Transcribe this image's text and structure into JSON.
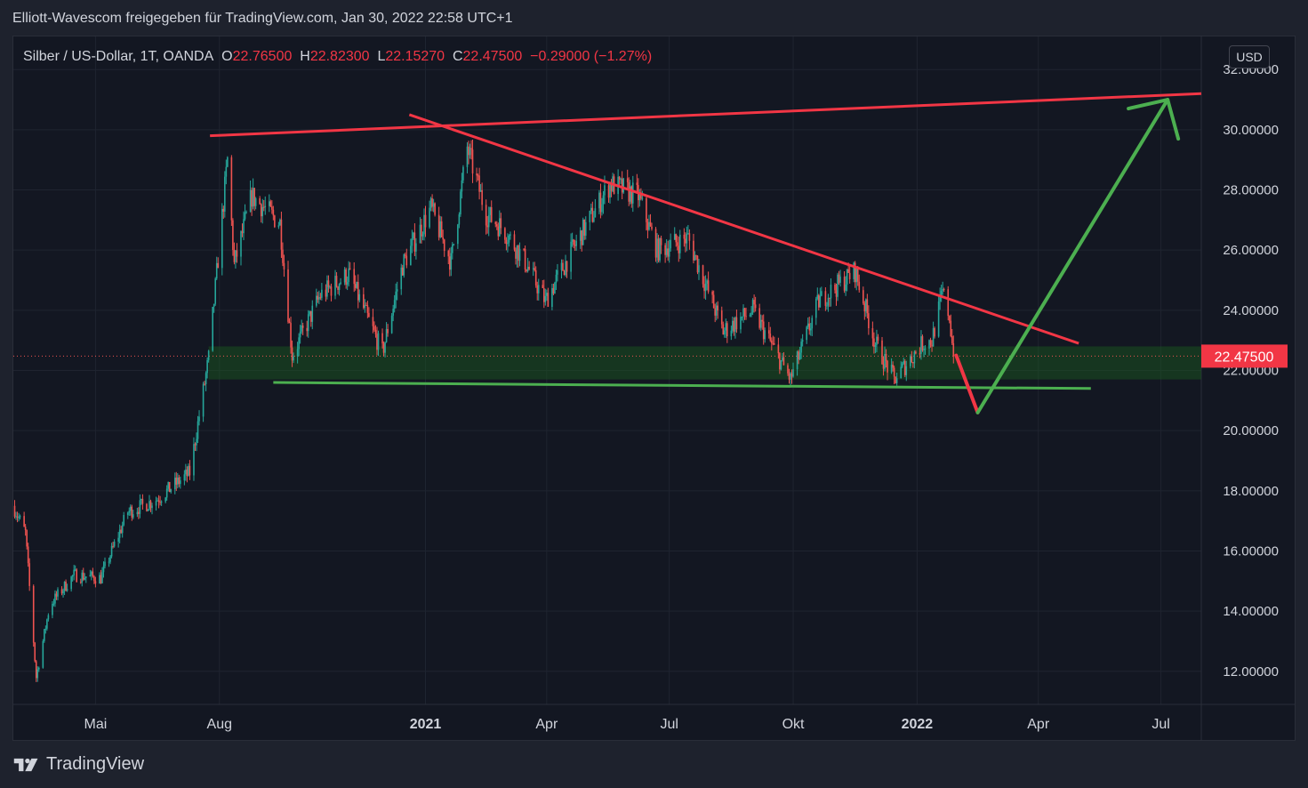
{
  "header": {
    "attribution": "Elliott-Wavescom freigegeben für TradingView.com, Jan 30, 2022 22:58 UTC+1"
  },
  "legend": {
    "symbol": "Silber / US-Dollar, 1T, OANDA",
    "o_label": "O",
    "o_value": "22.76500",
    "h_label": "H",
    "h_value": "22.82300",
    "l_label": "L",
    "l_value": "22.15270",
    "c_label": "C",
    "c_value": "22.47500",
    "change": "−0.29000 (−1.27%)"
  },
  "price_axis": {
    "currency": "USD",
    "current_price_label": "22.47500"
  },
  "footer": {
    "brand": "TradingView"
  },
  "colors": {
    "up": "#26a69a",
    "down": "#ef5350",
    "resistance": "#f23645",
    "support": "#4caf50",
    "zone": "#1b5e20",
    "background": "#131722"
  },
  "chart_data": {
    "type": "candlestick",
    "title": "Silber / US-Dollar, 1T, OANDA",
    "ylim": [
      10.9,
      33.1
    ],
    "y_ticks": [
      "32.00000",
      "30.00000",
      "28.00000",
      "26.00000",
      "24.00000",
      "22.00000",
      "20.00000",
      "18.00000",
      "16.00000",
      "14.00000",
      "12.00000"
    ],
    "y_tick_values": [
      32,
      30,
      28,
      26,
      24,
      22,
      20,
      18,
      16,
      14,
      12
    ],
    "x_range": [
      "2020-03-01",
      "2022-07-31"
    ],
    "x_ticks": [
      {
        "label": "Mai",
        "date": "2020-05-01",
        "bold": false
      },
      {
        "label": "Aug",
        "date": "2020-08-01",
        "bold": false
      },
      {
        "label": "2021",
        "date": "2021-01-01",
        "bold": true
      },
      {
        "label": "Apr",
        "date": "2021-04-01",
        "bold": false
      },
      {
        "label": "Jul",
        "date": "2021-07-01",
        "bold": false
      },
      {
        "label": "Okt",
        "date": "2021-10-01",
        "bold": false
      },
      {
        "label": "2022",
        "date": "2022-01-01",
        "bold": true
      },
      {
        "label": "Apr",
        "date": "2022-04-01",
        "bold": false
      },
      {
        "label": "Jul",
        "date": "2022-07-01",
        "bold": false
      }
    ],
    "price_path": [
      [
        "2020-03-01",
        17.5
      ],
      [
        "2020-03-10",
        16.6
      ],
      [
        "2020-03-18",
        11.8
      ],
      [
        "2020-03-28",
        14.2
      ],
      [
        "2020-04-15",
        15.2
      ],
      [
        "2020-05-05",
        15.1
      ],
      [
        "2020-05-25",
        17.3
      ],
      [
        "2020-06-15",
        17.7
      ],
      [
        "2020-07-10",
        18.6
      ],
      [
        "2020-07-24",
        22.4
      ],
      [
        "2020-08-07",
        29.0
      ],
      [
        "2020-08-12",
        25.5
      ],
      [
        "2020-08-25",
        27.8
      ],
      [
        "2020-09-15",
        26.9
      ],
      [
        "2020-09-24",
        22.5
      ],
      [
        "2020-10-15",
        24.5
      ],
      [
        "2020-11-05",
        25.2
      ],
      [
        "2020-11-30",
        22.6
      ],
      [
        "2020-12-15",
        25.5
      ],
      [
        "2021-01-05",
        27.4
      ],
      [
        "2021-01-20",
        25.6
      ],
      [
        "2021-02-01",
        29.4
      ],
      [
        "2021-02-15",
        27.2
      ],
      [
        "2021-02-28",
        26.7
      ],
      [
        "2021-03-15",
        25.7
      ],
      [
        "2021-03-31",
        24.3
      ],
      [
        "2021-04-20",
        26.0
      ],
      [
        "2021-05-18",
        28.2
      ],
      [
        "2021-06-08",
        27.8
      ],
      [
        "2021-06-22",
        26.0
      ],
      [
        "2021-07-15",
        26.4
      ],
      [
        "2021-08-10",
        23.3
      ],
      [
        "2021-09-01",
        24.0
      ],
      [
        "2021-09-29",
        21.7
      ],
      [
        "2021-10-20",
        24.3
      ],
      [
        "2021-11-16",
        25.3
      ],
      [
        "2021-12-01",
        22.9
      ],
      [
        "2021-12-15",
        21.7
      ],
      [
        "2022-01-05",
        22.9
      ],
      [
        "2022-01-12",
        23.0
      ],
      [
        "2022-01-20",
        24.6
      ],
      [
        "2022-01-25",
        23.8
      ],
      [
        "2022-01-28",
        22.475
      ]
    ],
    "zone": {
      "from": 21.7,
      "to": 22.8,
      "label": "support zone"
    },
    "current_price": 22.475,
    "lines": [
      {
        "name": "upper trendline",
        "color": "#f23645",
        "from": [
          "2020-07-25",
          29.8
        ],
        "to": [
          "2022-07-31",
          31.2
        ]
      },
      {
        "name": "descending trendline",
        "color": "#f23645",
        "from": [
          "2020-12-20",
          30.5
        ],
        "to": [
          "2022-05-01",
          22.9
        ]
      },
      {
        "name": "lower support line",
        "color": "#4caf50",
        "from": [
          "2020-09-10",
          21.6
        ],
        "to": [
          "2022-05-10",
          21.4
        ]
      }
    ],
    "projection": [
      {
        "color": "#f23645",
        "from": [
          "2022-01-30",
          22.5
        ],
        "to": [
          "2022-02-15",
          20.6
        ]
      },
      {
        "color": "#4caf50",
        "from": [
          "2022-02-15",
          20.6
        ],
        "to": [
          "2022-07-06",
          31.0
        ]
      }
    ]
  }
}
